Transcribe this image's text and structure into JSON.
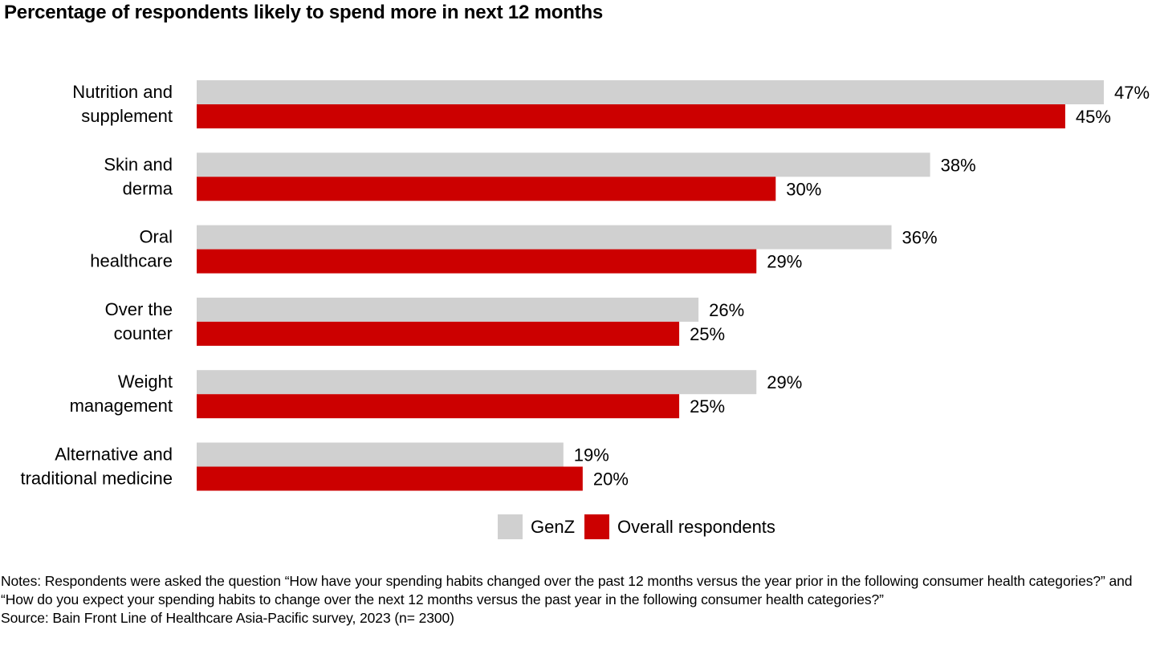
{
  "title": "Percentage of respondents likely to spend more in next 12 months",
  "chart_data": {
    "type": "bar",
    "orientation": "horizontal",
    "title": "Percentage of respondents likely to spend more in next 12 months",
    "categories": [
      [
        "Nutrition and",
        "supplement"
      ],
      [
        "Skin and",
        "derma"
      ],
      [
        "Oral",
        "healthcare"
      ],
      [
        "Over the",
        "counter"
      ],
      [
        "Weight",
        "management"
      ],
      [
        "Alternative and",
        "traditional medicine"
      ]
    ],
    "series": [
      {
        "name": "GenZ",
        "color": "#d0d0d0",
        "values": [
          47,
          38,
          36,
          26,
          29,
          19
        ]
      },
      {
        "name": "Overall respondents",
        "color": "#cc0000",
        "values": [
          45,
          30,
          29,
          25,
          25,
          20
        ]
      }
    ],
    "value_suffix": "%",
    "xlim": [
      0,
      47
    ],
    "xlabel": "",
    "ylabel": "",
    "grid": false,
    "legend": "bottom-center"
  },
  "legend": {
    "items": [
      {
        "label": "GenZ",
        "color": "#d0d0d0"
      },
      {
        "label": "Overall respondents",
        "color": "#cc0000"
      }
    ]
  },
  "notes": {
    "text": "Notes: Respondents were asked the question “How have your spending habits changed over the past 12 months versus the year prior in the following consumer health categories?” and “How do you expect your spending habits to change over the next 12 months versus the past year in the following consumer health categories?”",
    "source": "Source: Bain Front Line of Healthcare Asia-Pacific survey, 2023 (n= 2300)"
  }
}
